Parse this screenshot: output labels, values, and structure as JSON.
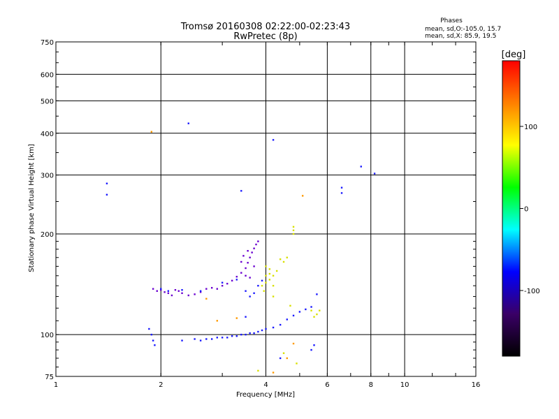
{
  "chart_data": {
    "type": "scatter",
    "title": "Tromsø 20160308 02:22:00-02:23:43",
    "subtitle": "RwPretec (8p)",
    "xlabel": "Frequency [MHz]",
    "ylabel": "Stationary phase Virtual Height [km]",
    "x_scale": "log",
    "y_scale": "log",
    "xlim": [
      1,
      16
    ],
    "ylim": [
      75,
      750
    ],
    "x_ticks": [
      1,
      2,
      4,
      6,
      8,
      10,
      16
    ],
    "y_ticks": [
      75,
      100,
      200,
      300,
      400,
      500,
      600,
      750
    ],
    "grid": true,
    "stats": {
      "heading": "Phases",
      "line1": "mean, sd,O:-105.0, 15.7",
      "line2": "mean, sd,X:  85.9, 19.5"
    },
    "colorbar": {
      "label": "[deg]",
      "range": [
        -180,
        180
      ],
      "ticks": [
        "100",
        "0",
        "-100"
      ],
      "tick_values": [
        100,
        0,
        -100
      ],
      "colors": [
        "#000000",
        "#3a0066",
        "#0000ff",
        "#00ffff",
        "#00ff00",
        "#ffff00",
        "#ff8000",
        "#ff0000"
      ]
    },
    "point_colors": {
      "blue": "#1a1aff",
      "purple": "#6a00d0",
      "yellow": "#d8e000",
      "orange": "#ff9900"
    },
    "series": [
      {
        "color_key": "purple",
        "points": [
          [
            1.9,
            137
          ],
          [
            1.95,
            135
          ],
          [
            2.0,
            136
          ],
          [
            2.05,
            134
          ],
          [
            2.1,
            133
          ],
          [
            2.15,
            131
          ],
          [
            2.2,
            136
          ],
          [
            2.25,
            135
          ],
          [
            2.3,
            133
          ],
          [
            2.4,
            131
          ],
          [
            2.5,
            132
          ],
          [
            2.6,
            134
          ],
          [
            2.7,
            137
          ],
          [
            2.8,
            138
          ],
          [
            2.9,
            137
          ],
          [
            3.0,
            140
          ],
          [
            3.1,
            142
          ],
          [
            3.2,
            145
          ],
          [
            3.3,
            149
          ],
          [
            3.4,
            153
          ],
          [
            3.5,
            158
          ],
          [
            3.55,
            164
          ],
          [
            3.6,
            170
          ],
          [
            3.65,
            176
          ],
          [
            3.7,
            181
          ],
          [
            3.75,
            186
          ],
          [
            3.8,
            190
          ],
          [
            3.5,
            150
          ],
          [
            3.6,
            148
          ],
          [
            3.7,
            160
          ],
          [
            3.4,
            165
          ],
          [
            3.45,
            172
          ],
          [
            3.55,
            178
          ]
        ]
      },
      {
        "color_key": "blue",
        "points": [
          [
            2.0,
            137
          ],
          [
            2.1,
            135
          ],
          [
            2.3,
            136
          ],
          [
            2.6,
            135
          ],
          [
            3.0,
            143
          ],
          [
            3.3,
            146
          ],
          [
            3.5,
            135
          ],
          [
            3.6,
            130
          ],
          [
            3.7,
            133
          ],
          [
            3.8,
            140
          ],
          [
            3.9,
            145
          ],
          [
            2.5,
            97
          ],
          [
            2.6,
            96
          ],
          [
            2.7,
            97
          ],
          [
            2.8,
            97
          ],
          [
            2.9,
            98
          ],
          [
            3.0,
            98
          ],
          [
            3.1,
            98
          ],
          [
            3.2,
            99
          ],
          [
            3.3,
            99
          ],
          [
            3.4,
            100
          ],
          [
            3.5,
            100
          ],
          [
            3.6,
            101
          ],
          [
            3.7,
            101
          ],
          [
            3.8,
            102
          ],
          [
            3.9,
            103
          ],
          [
            4.0,
            104
          ],
          [
            4.2,
            105
          ],
          [
            4.4,
            107
          ],
          [
            4.6,
            111
          ],
          [
            4.8,
            114
          ],
          [
            5.0,
            117
          ],
          [
            5.2,
            119
          ],
          [
            5.4,
            121
          ],
          [
            1.85,
            104
          ],
          [
            1.88,
            100
          ],
          [
            1.9,
            96
          ],
          [
            1.92,
            93
          ],
          [
            2.3,
            96
          ],
          [
            5.6,
            132
          ],
          [
            6.6,
            275
          ],
          [
            6.6,
            265
          ],
          [
            7.5,
            318
          ],
          [
            8.2,
            303
          ],
          [
            2.4,
            428
          ],
          [
            4.2,
            382
          ],
          [
            3.4,
            269
          ],
          [
            1.4,
            283
          ],
          [
            1.4,
            262
          ],
          [
            3.5,
            113
          ],
          [
            5.5,
            93
          ],
          [
            5.4,
            90
          ],
          [
            4.4,
            85
          ]
        ]
      },
      {
        "color_key": "yellow",
        "points": [
          [
            3.9,
            140
          ],
          [
            4.0,
            143
          ],
          [
            4.1,
            146
          ],
          [
            4.2,
            150
          ],
          [
            4.3,
            155
          ],
          [
            4.0,
            150
          ],
          [
            4.1,
            152
          ],
          [
            4.2,
            140
          ],
          [
            3.95,
            135
          ],
          [
            4.0,
            160
          ],
          [
            4.1,
            157
          ],
          [
            4.5,
            165
          ],
          [
            4.6,
            170
          ],
          [
            4.4,
            168
          ],
          [
            4.8,
            210
          ],
          [
            4.8,
            205
          ],
          [
            4.8,
            200
          ],
          [
            5.4,
            118
          ],
          [
            5.6,
            115
          ],
          [
            5.5,
            113
          ],
          [
            4.2,
            130
          ],
          [
            4.7,
            122
          ],
          [
            5.7,
            118
          ],
          [
            3.8,
            78
          ],
          [
            4.5,
            88
          ],
          [
            4.9,
            82
          ]
        ]
      },
      {
        "color_key": "orange",
        "points": [
          [
            1.88,
            404
          ],
          [
            5.1,
            260
          ],
          [
            4.8,
            94
          ],
          [
            2.7,
            128
          ],
          [
            2.9,
            110
          ],
          [
            3.3,
            112
          ],
          [
            4.2,
            77
          ],
          [
            4.6,
            85
          ]
        ]
      }
    ]
  }
}
